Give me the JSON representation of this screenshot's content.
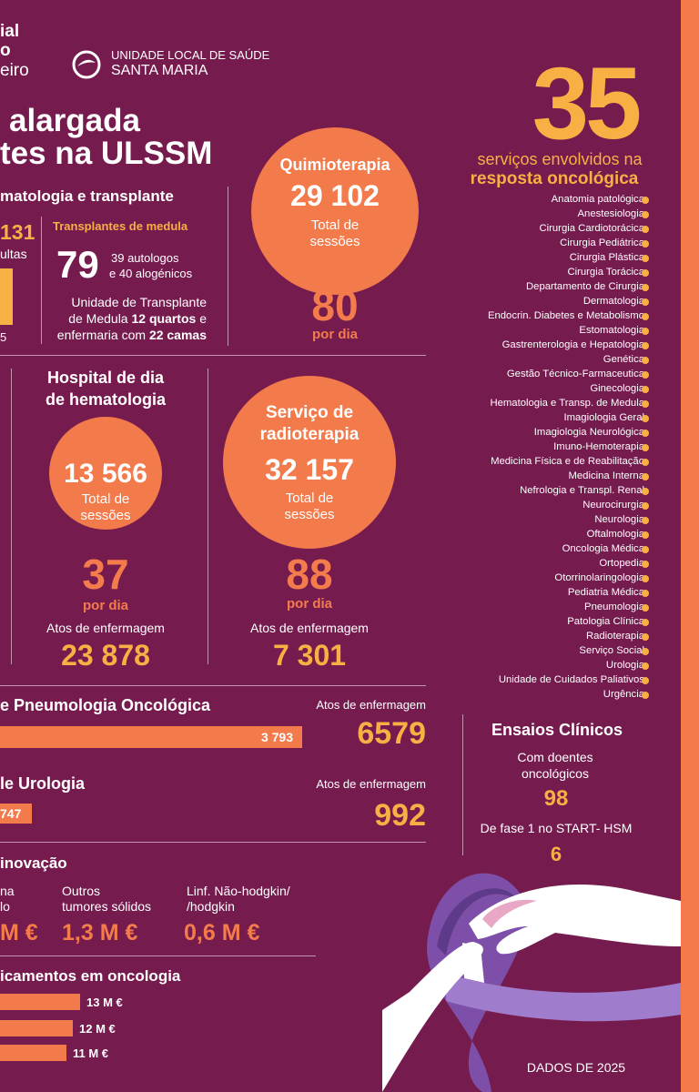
{
  "header": {
    "partner_lines": [
      "ial",
      "o",
      "eiro"
    ],
    "logo_line1": "UNIDADE LOCAL DE SAÚDE",
    "logo_line2": "SANTA MARIA"
  },
  "title_lines": [
    "alargada",
    "tes na ULSSM"
  ],
  "hematology": {
    "heading": "matologia e transplante",
    "consults_value": "131",
    "consults_label": "ultas",
    "bar_label": "5",
    "transplants_heading": "Transplantes de medula",
    "transplants_value": "79",
    "transplants_detail": [
      "39 autologos",
      "e 40 alogénicos"
    ],
    "unit_line1": "Unidade de Transplante",
    "unit_line2_a": "de Medula",
    "unit_line2_b": "12 quartos",
    "unit_line2_c": "e",
    "unit_line3_a": "enfermaria com",
    "unit_line3_b": "22 camas"
  },
  "chemo": {
    "title": "Quimioterapia",
    "total": "29 102",
    "total_label": [
      "Total de",
      "sessões"
    ],
    "per_day": "80",
    "per_day_label": "por dia"
  },
  "day_hospital": {
    "title": [
      "Hospital de dia",
      "de hematologia"
    ],
    "total": "13 566",
    "total_label": [
      "Total de",
      "sessões"
    ],
    "per_day": "37",
    "per_day_label": "por dia",
    "nursing_label": "Atos de enfermagem",
    "nursing": "23 878"
  },
  "radiotherapy": {
    "title": [
      "Serviço de",
      "radioterapia"
    ],
    "total": "32 157",
    "total_label": [
      "Total de",
      "sessões"
    ],
    "per_day": "88",
    "per_day_label": "por dia",
    "nursing_label": "Atos de enfermagem",
    "nursing": "7 301"
  },
  "pneumology": {
    "heading": "e Pneumologia Oncológica",
    "nursing_label": "Atos de enfermagem",
    "bar_label": "3 793",
    "nursing": "6579"
  },
  "urology": {
    "heading": "le Urologia",
    "nursing_label": "Atos de enfermagem",
    "bar_label": "747",
    "nursing": "992"
  },
  "innovation": {
    "heading": "inovação",
    "items": [
      {
        "label": [
          "na",
          "lo"
        ],
        "value": "M €"
      },
      {
        "label": [
          "Outros",
          "tumores sólidos"
        ],
        "value": "1,3 M €"
      },
      {
        "label": [
          "Linf. Não-hodgkin/",
          "/hodgkin"
        ],
        "value": "0,6 M €"
      }
    ]
  },
  "medicines": {
    "heading": "icamentos em oncologia",
    "bars": [
      "13 M €",
      "12 M €",
      "11 M €"
    ]
  },
  "services": {
    "count": "35",
    "subtitle": "serviços envolvidos na",
    "subtitle_bold": "resposta oncológica",
    "list": [
      "Anatomia patológica",
      "Anestesiologia",
      "Cirurgia Cardiotorácica",
      "Cirurgia Pediátrica",
      "Cirurgia Plástica",
      "Cirurgia Torácica",
      "Departamento de Cirurgia",
      "Dermatologia",
      "Endocrin. Diabetes e Metabolismo",
      "Estomatologia",
      "Gastrenterologia e Hepatologia",
      "Genética",
      "Gestão Técnico-Farmaceutica",
      "Ginecologia",
      "Hematologia e Transp. de Medula",
      "Imagiologia Geral",
      "Imagiologia Neurológica",
      "Imuno-Hemoterapia",
      "Medicina Física e de Reabilitação",
      "Medicina Interna",
      "Nefrologia e Transpl. Renal",
      "Neurocirurgia",
      "Neurologia",
      "Oftalmologia",
      "Oncologia Médica",
      "Ortopedia",
      "Otorrinolaringologia",
      "Pediatria Médica",
      "Pneumologia",
      "Patologia Clínica",
      "Radioterapia",
      "Serviço Social",
      "Urologia",
      "Unidade de Cuidados Paliativos",
      "Urgência"
    ]
  },
  "trials": {
    "heading": "Ensaios Clínicos",
    "line1": [
      "Com doentes",
      "oncológicos"
    ],
    "value1": "98",
    "line2": "De fase 1 no START- HSM",
    "value2": "6"
  },
  "footer": "DADOS DE 2025"
}
